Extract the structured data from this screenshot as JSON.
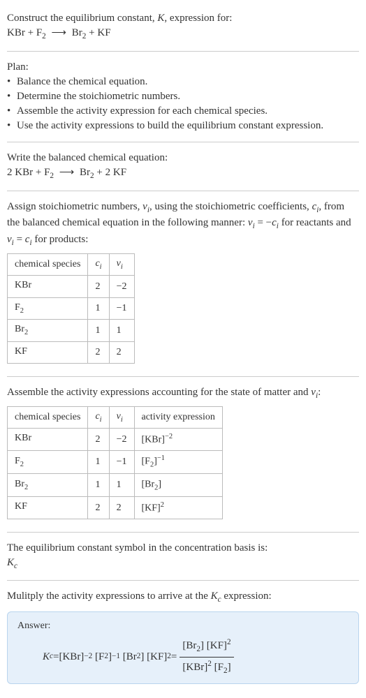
{
  "header": {
    "line1_a": "Construct the equilibrium constant, ",
    "line1_k": "K",
    "line1_b": ", expression for:",
    "eq_lhs1": "KBr",
    "eq_plus": " + ",
    "eq_lhs2": "F",
    "eq_lhs2_sub": "2",
    "eq_arrow": "⟶",
    "eq_rhs1": "Br",
    "eq_rhs1_sub": "2",
    "eq_rhs2": "KF"
  },
  "plan": {
    "title": "Plan:",
    "b1": "Balance the chemical equation.",
    "b2": "Determine the stoichiometric numbers.",
    "b3": "Assemble the activity expression for each chemical species.",
    "b4": "Use the activity expressions to build the equilibrium constant expression."
  },
  "balanced": {
    "title": "Write the balanced chemical equation:",
    "c1": "2 KBr",
    "c2": "F",
    "c2_sub": "2",
    "arrow": "⟶",
    "c3": "Br",
    "c3_sub": "2",
    "c4": "2 KF"
  },
  "assign": {
    "text_a": "Assign stoichiometric numbers, ",
    "nu_i": "ν",
    "sub_i": "i",
    "text_b": ", using the stoichiometric coefficients, ",
    "c_i": "c",
    "text_c": ", from the balanced chemical equation in the following manner: ",
    "rel1_a": "ν",
    "rel1_b": " = −",
    "rel1_c": "c",
    "text_d": " for reactants and ",
    "rel2_a": "ν",
    "rel2_b": " = ",
    "rel2_c": "c",
    "text_e": " for products:"
  },
  "table1": {
    "h1": "chemical species",
    "h2": "c",
    "h2_sub": "i",
    "h3": "ν",
    "h3_sub": "i",
    "rows": [
      {
        "sp": "KBr",
        "sub": "",
        "c": "2",
        "v": "−2"
      },
      {
        "sp": "F",
        "sub": "2",
        "c": "1",
        "v": "−1"
      },
      {
        "sp": "Br",
        "sub": "2",
        "c": "1",
        "v": "1"
      },
      {
        "sp": "KF",
        "sub": "",
        "c": "2",
        "v": "2"
      }
    ]
  },
  "assemble": {
    "text_a": "Assemble the activity expressions accounting for the state of matter and ",
    "nu": "ν",
    "sub_i": "i",
    "colon": ":"
  },
  "table2": {
    "h1": "chemical species",
    "h2": "c",
    "h2_sub": "i",
    "h3": "ν",
    "h3_sub": "i",
    "h4": "activity expression",
    "rows": [
      {
        "sp": "KBr",
        "sub": "",
        "c": "2",
        "v": "−2",
        "act_base": "[KBr]",
        "act_sub": "",
        "act_sup": "−2"
      },
      {
        "sp": "F",
        "sub": "2",
        "c": "1",
        "v": "−1",
        "act_base": "[F",
        "act_sub": "2",
        "act_close": "]",
        "act_sup": "−1"
      },
      {
        "sp": "Br",
        "sub": "2",
        "c": "1",
        "v": "1",
        "act_base": "[Br",
        "act_sub": "2",
        "act_close": "]",
        "act_sup": ""
      },
      {
        "sp": "KF",
        "sub": "",
        "c": "2",
        "v": "2",
        "act_base": "[KF]",
        "act_sub": "",
        "act_sup": "2"
      }
    ]
  },
  "symbol": {
    "text": "The equilibrium constant symbol in the concentration basis is:",
    "kc": "K",
    "kc_sub": "c"
  },
  "multiply": {
    "text_a": "Mulitply the activity expressions to arrive at the ",
    "kc": "K",
    "kc_sub": "c",
    "text_b": " expression:"
  },
  "answer": {
    "label": "Answer:",
    "lhs_k": "K",
    "lhs_sub": "c",
    "eq": " = ",
    "t1": "[KBr]",
    "t1_sup": "−2",
    "t2a": "[F",
    "t2_sub": "2",
    "t2b": "]",
    "t2_sup": "−1",
    "t3a": "[Br",
    "t3_sub": "2",
    "t3b": "]",
    "t4": "[KF]",
    "t4_sup": "2",
    "eq2": " = ",
    "num_a": "[Br",
    "num_a_sub": "2",
    "num_b": "] [KF]",
    "num_sup": "2",
    "den_a": "[KBr]",
    "den_a_sup": "2",
    "den_b": " [F",
    "den_b_sub": "2",
    "den_c": "]"
  }
}
